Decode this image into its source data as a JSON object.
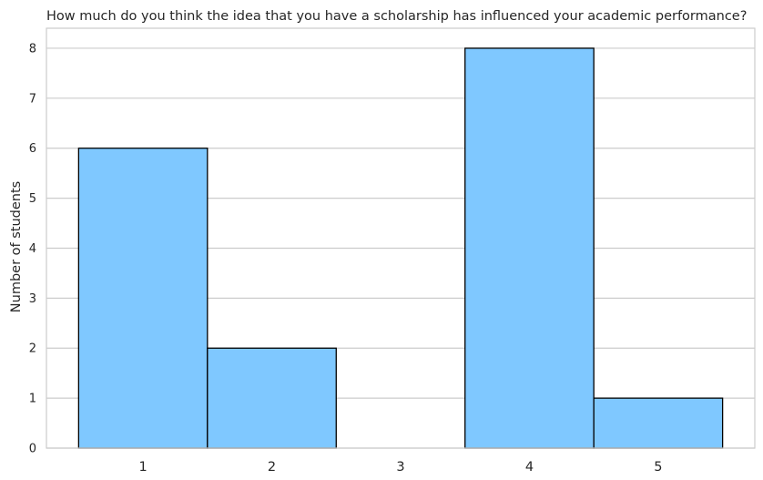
{
  "chart_data": {
    "type": "bar",
    "title": "How much do you think the idea that you have a scholarship has influenced your academic performance?",
    "xlabel": "",
    "ylabel": "Number of students",
    "categories": [
      "1",
      "2",
      "3",
      "4",
      "5"
    ],
    "values": [
      6,
      2,
      0,
      8,
      1
    ],
    "ylim": [
      0,
      8.4
    ],
    "yticks": [
      0,
      1,
      2,
      3,
      4,
      5,
      6,
      7,
      8
    ],
    "bar_color": "#7fc8ff",
    "edge_color": "#000000",
    "grid": true,
    "legend": "none"
  }
}
